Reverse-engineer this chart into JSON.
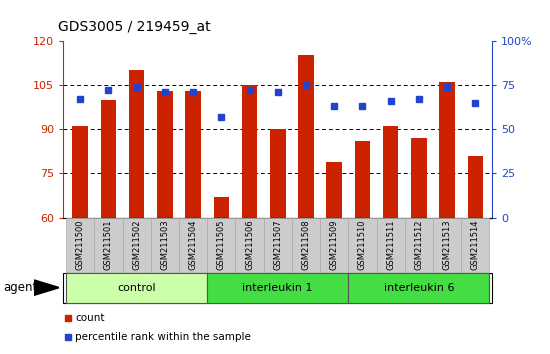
{
  "title": "GDS3005 / 219459_at",
  "samples": [
    "GSM211500",
    "GSM211501",
    "GSM211502",
    "GSM211503",
    "GSM211504",
    "GSM211505",
    "GSM211506",
    "GSM211507",
    "GSM211508",
    "GSM211509",
    "GSM211510",
    "GSM211511",
    "GSM211512",
    "GSM211513",
    "GSM211514"
  ],
  "counts": [
    91,
    100,
    110,
    103,
    103,
    67,
    105,
    90,
    115,
    79,
    86,
    91,
    87,
    106,
    81
  ],
  "percentiles": [
    67,
    72,
    74,
    71,
    71,
    57,
    72,
    71,
    75,
    63,
    63,
    66,
    67,
    74,
    65
  ],
  "bar_color": "#cc2200",
  "dot_color": "#2244cc",
  "left_ylim": [
    60,
    120
  ],
  "right_ylim": [
    0,
    100
  ],
  "left_yticks": [
    60,
    75,
    90,
    105,
    120
  ],
  "right_yticks": [
    0,
    25,
    50,
    75,
    100
  ],
  "right_yticklabels": [
    "0",
    "25",
    "50",
    "75",
    "100%"
  ],
  "groups": [
    {
      "label": "control",
      "start": 0,
      "end": 5,
      "color": "#ccffaa"
    },
    {
      "label": "interleukin 1",
      "start": 5,
      "end": 10,
      "color": "#44dd44"
    },
    {
      "label": "interleukin 6",
      "start": 10,
      "end": 15,
      "color": "#44dd44"
    }
  ],
  "xlabel_bg": "#cccccc",
  "agent_label": "agent",
  "legend_count_label": "count",
  "legend_pct_label": "percentile rank within the sample"
}
